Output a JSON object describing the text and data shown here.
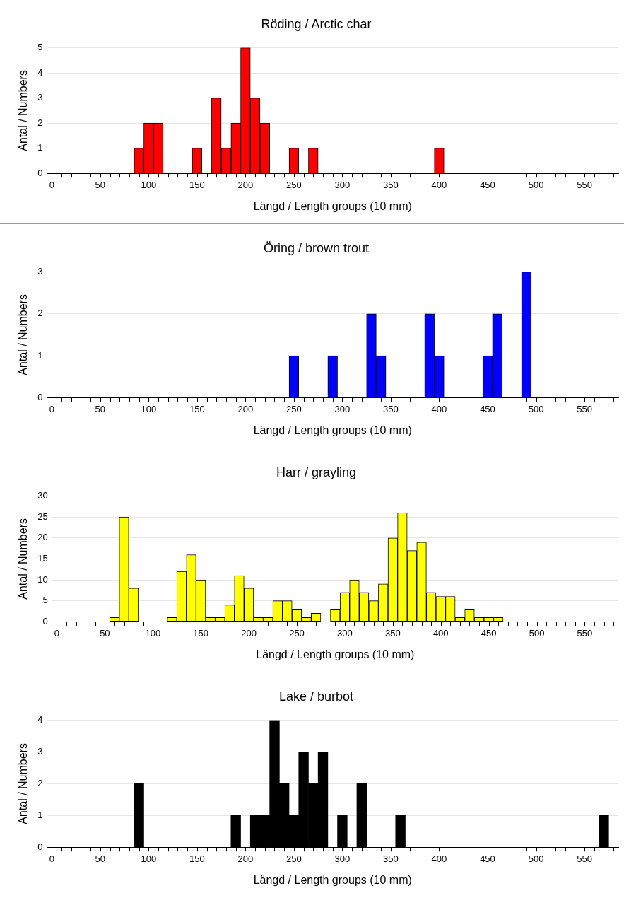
{
  "chart_data": [
    {
      "type": "histogram",
      "title": "Röding / Arctic char",
      "xlabel": "Längd / Length groups (10 mm)",
      "ylabel": "Antal / Numbers",
      "color": "#ff0000",
      "grid": "y",
      "bins": [
        -5,
        5,
        15,
        25,
        35,
        45,
        55,
        65,
        75,
        85,
        95,
        105,
        115,
        125,
        135,
        145,
        155,
        165,
        175,
        185,
        195,
        205,
        215,
        225,
        235,
        245,
        255,
        265,
        275,
        285,
        295,
        305,
        315,
        325,
        335,
        345,
        355,
        365,
        375,
        385,
        395,
        405,
        415,
        425,
        435,
        445,
        455,
        465,
        475,
        485,
        495,
        505,
        515,
        525,
        535,
        545,
        555,
        565,
        575,
        585
      ],
      "values": [
        0,
        0,
        0,
        0,
        0,
        0,
        0,
        0,
        0,
        1,
        2,
        2,
        0,
        0,
        0,
        1,
        0,
        3,
        1,
        2,
        5,
        3,
        2,
        0,
        0,
        1,
        0,
        1,
        0,
        0,
        0,
        0,
        0,
        0,
        0,
        0,
        0,
        0,
        0,
        0,
        1,
        0,
        0,
        0,
        0,
        0,
        0,
        0,
        0,
        0,
        0,
        0,
        0,
        0,
        0,
        0,
        0,
        0,
        0
      ],
      "xlim": [
        -5,
        585
      ],
      "ylim": [
        0,
        5
      ],
      "yticks": [
        0,
        1,
        2,
        3,
        4,
        5
      ],
      "xticks": [
        0,
        {
          "value": 10,
          "label": null
        },
        {
          "value": 20,
          "label": null
        },
        {
          "value": 30,
          "label": null
        },
        {
          "value": 40,
          "label": null
        },
        50,
        {
          "value": 60,
          "label": null
        },
        {
          "value": 70,
          "label": null
        },
        {
          "value": 80,
          "label": null
        },
        {
          "value": 90,
          "label": null
        },
        100,
        {
          "value": 110,
          "label": null
        },
        {
          "value": 120,
          "label": null
        },
        {
          "value": 130,
          "label": null
        },
        {
          "value": 140,
          "label": null
        },
        150,
        {
          "value": 160,
          "label": null
        },
        {
          "value": 170,
          "label": null
        },
        {
          "value": 180,
          "label": null
        },
        {
          "value": 190,
          "label": null
        },
        200,
        {
          "value": 210,
          "label": null
        },
        {
          "value": 220,
          "label": null
        },
        {
          "value": 230,
          "label": null
        },
        {
          "value": 240,
          "label": null
        },
        250,
        {
          "value": 260,
          "label": null
        },
        {
          "value": 270,
          "label": null
        },
        {
          "value": 280,
          "label": null
        },
        {
          "value": 290,
          "label": null
        },
        300,
        {
          "value": 310,
          "label": null
        },
        {
          "value": 320,
          "label": null
        },
        {
          "value": 330,
          "label": null
        },
        {
          "value": 340,
          "label": null
        },
        350,
        {
          "value": 360,
          "label": null
        },
        {
          "value": 370,
          "label": null
        },
        {
          "value": 380,
          "label": null
        },
        {
          "value": 390,
          "label": null
        },
        400,
        {
          "value": 410,
          "label": null
        },
        {
          "value": 420,
          "label": null
        },
        {
          "value": 430,
          "label": null
        },
        {
          "value": 440,
          "label": null
        },
        450,
        {
          "value": 460,
          "label": null
        },
        {
          "value": 470,
          "label": null
        },
        {
          "value": 480,
          "label": null
        },
        {
          "value": 490,
          "label": null
        },
        500,
        {
          "value": 510,
          "label": null
        },
        {
          "value": 520,
          "label": null
        },
        {
          "value": 530,
          "label": null
        },
        {
          "value": 540,
          "label": null
        },
        550,
        {
          "value": 560,
          "label": null
        },
        {
          "value": 570,
          "label": null
        },
        {
          "value": 580,
          "label": null
        }
      ]
    },
    {
      "type": "histogram",
      "title": "Öring / brown trout",
      "xlabel": "Längd / Length groups (10 mm)",
      "ylabel": "Antal / Numbers",
      "color": "#0000ff",
      "grid": "y",
      "bins": [
        -5,
        5,
        15,
        25,
        35,
        45,
        55,
        65,
        75,
        85,
        95,
        105,
        115,
        125,
        135,
        145,
        155,
        165,
        175,
        185,
        195,
        205,
        215,
        225,
        235,
        245,
        255,
        265,
        275,
        285,
        295,
        305,
        315,
        325,
        335,
        345,
        355,
        365,
        375,
        385,
        395,
        405,
        415,
        425,
        435,
        445,
        455,
        465,
        475,
        485,
        495,
        505,
        515,
        525,
        535,
        545,
        555,
        565,
        575,
        585
      ],
      "values": [
        0,
        0,
        0,
        0,
        0,
        0,
        0,
        0,
        0,
        0,
        0,
        0,
        0,
        0,
        0,
        0,
        0,
        0,
        0,
        0,
        0,
        0,
        0,
        0,
        0,
        1,
        0,
        0,
        0,
        1,
        0,
        0,
        0,
        2,
        1,
        0,
        0,
        0,
        0,
        2,
        1,
        0,
        0,
        0,
        0,
        1,
        2,
        0,
        0,
        3,
        0,
        0,
        0,
        0,
        0,
        0,
        0,
        0,
        0
      ],
      "xlim": [
        -5,
        585
      ],
      "ylim": [
        0,
        3
      ],
      "yticks": [
        0,
        1,
        2,
        3
      ],
      "xticks": [
        0,
        {
          "value": 10,
          "label": null
        },
        {
          "value": 20,
          "label": null
        },
        {
          "value": 30,
          "label": null
        },
        {
          "value": 40,
          "label": null
        },
        50,
        {
          "value": 60,
          "label": null
        },
        {
          "value": 70,
          "label": null
        },
        {
          "value": 80,
          "label": null
        },
        {
          "value": 90,
          "label": null
        },
        100,
        {
          "value": 110,
          "label": null
        },
        {
          "value": 120,
          "label": null
        },
        {
          "value": 130,
          "label": null
        },
        {
          "value": 140,
          "label": null
        },
        150,
        {
          "value": 160,
          "label": null
        },
        {
          "value": 170,
          "label": null
        },
        {
          "value": 180,
          "label": null
        },
        {
          "value": 190,
          "label": null
        },
        200,
        {
          "value": 210,
          "label": null
        },
        {
          "value": 220,
          "label": null
        },
        {
          "value": 230,
          "label": null
        },
        {
          "value": 240,
          "label": null
        },
        250,
        {
          "value": 260,
          "label": null
        },
        {
          "value": 270,
          "label": null
        },
        {
          "value": 280,
          "label": null
        },
        {
          "value": 290,
          "label": null
        },
        300,
        {
          "value": 310,
          "label": null
        },
        {
          "value": 320,
          "label": null
        },
        {
          "value": 330,
          "label": null
        },
        {
          "value": 340,
          "label": null
        },
        350,
        {
          "value": 360,
          "label": null
        },
        {
          "value": 370,
          "label": null
        },
        {
          "value": 380,
          "label": null
        },
        {
          "value": 390,
          "label": null
        },
        400,
        {
          "value": 410,
          "label": null
        },
        {
          "value": 420,
          "label": null
        },
        {
          "value": 430,
          "label": null
        },
        {
          "value": 440,
          "label": null
        },
        450,
        {
          "value": 460,
          "label": null
        },
        {
          "value": 470,
          "label": null
        },
        {
          "value": 480,
          "label": null
        },
        {
          "value": 490,
          "label": null
        },
        500,
        {
          "value": 510,
          "label": null
        },
        {
          "value": 520,
          "label": null
        },
        {
          "value": 530,
          "label": null
        },
        {
          "value": 540,
          "label": null
        },
        550,
        {
          "value": 560,
          "label": null
        },
        {
          "value": 570,
          "label": null
        },
        {
          "value": 580,
          "label": null
        }
      ]
    },
    {
      "type": "histogram",
      "title": "Harr / grayling",
      "xlabel": "Längd / Length groups (10 mm)",
      "ylabel": "Antal / Numbers",
      "color": "#ffff00",
      "grid": "y",
      "bins": [
        -5,
        5,
        15,
        25,
        35,
        45,
        55,
        65,
        75,
        85,
        95,
        105,
        115,
        125,
        135,
        145,
        155,
        165,
        175,
        185,
        195,
        205,
        215,
        225,
        235,
        245,
        255,
        265,
        275,
        285,
        295,
        305,
        315,
        325,
        335,
        345,
        355,
        365,
        375,
        385,
        395,
        405,
        415,
        425,
        435,
        445,
        455,
        465,
        475,
        485,
        495,
        505,
        515,
        525,
        535,
        545,
        555,
        565,
        575,
        585
      ],
      "values": [
        0,
        0,
        0,
        0,
        0,
        0,
        1,
        25,
        8,
        0,
        0,
        0,
        1,
        12,
        16,
        10,
        1,
        1,
        4,
        11,
        8,
        1,
        1,
        5,
        5,
        3,
        1,
        2,
        0,
        3,
        7,
        10,
        7,
        5,
        9,
        20,
        26,
        17,
        19,
        7,
        6,
        6,
        1,
        3,
        1,
        1,
        1,
        0,
        0,
        0,
        0,
        0,
        0,
        0,
        0,
        0,
        0,
        0,
        0
      ],
      "xlim": [
        -5,
        585
      ],
      "ylim": [
        0,
        30
      ],
      "yticks": [
        0,
        5,
        10,
        15,
        20,
        25,
        30
      ],
      "xticks": [
        0,
        {
          "value": 10,
          "label": null
        },
        {
          "value": 20,
          "label": null
        },
        {
          "value": 30,
          "label": null
        },
        {
          "value": 40,
          "label": null
        },
        50,
        {
          "value": 60,
          "label": null
        },
        {
          "value": 70,
          "label": null
        },
        {
          "value": 80,
          "label": null
        },
        {
          "value": 90,
          "label": null
        },
        100,
        {
          "value": 110,
          "label": null
        },
        {
          "value": 120,
          "label": null
        },
        {
          "value": 130,
          "label": null
        },
        {
          "value": 140,
          "label": null
        },
        150,
        {
          "value": 160,
          "label": null
        },
        {
          "value": 170,
          "label": null
        },
        {
          "value": 180,
          "label": null
        },
        {
          "value": 190,
          "label": null
        },
        200,
        {
          "value": 210,
          "label": null
        },
        {
          "value": 220,
          "label": null
        },
        {
          "value": 230,
          "label": null
        },
        {
          "value": 240,
          "label": null
        },
        250,
        {
          "value": 260,
          "label": null
        },
        {
          "value": 270,
          "label": null
        },
        {
          "value": 280,
          "label": null
        },
        {
          "value": 290,
          "label": null
        },
        300,
        {
          "value": 310,
          "label": null
        },
        {
          "value": 320,
          "label": null
        },
        {
          "value": 330,
          "label": null
        },
        {
          "value": 340,
          "label": null
        },
        350,
        {
          "value": 360,
          "label": null
        },
        {
          "value": 370,
          "label": null
        },
        {
          "value": 380,
          "label": null
        },
        {
          "value": 390,
          "label": null
        },
        400,
        {
          "value": 410,
          "label": null
        },
        {
          "value": 420,
          "label": null
        },
        {
          "value": 430,
          "label": null
        },
        {
          "value": 440,
          "label": null
        },
        450,
        {
          "value": 460,
          "label": null
        },
        {
          "value": 470,
          "label": null
        },
        {
          "value": 480,
          "label": null
        },
        {
          "value": 490,
          "label": null
        },
        500,
        {
          "value": 510,
          "label": null
        },
        {
          "value": 520,
          "label": null
        },
        {
          "value": 530,
          "label": null
        },
        {
          "value": 540,
          "label": null
        },
        550,
        {
          "value": 560,
          "label": null
        },
        {
          "value": 570,
          "label": null
        },
        {
          "value": 580,
          "label": null
        }
      ]
    },
    {
      "type": "histogram",
      "title": "Lake / burbot",
      "xlabel": "Längd / Length groups (10 mm)",
      "ylabel": "Antal / Numbers",
      "color": "#000000",
      "grid": "y",
      "bins": [
        -5,
        5,
        15,
        25,
        35,
        45,
        55,
        65,
        75,
        85,
        95,
        105,
        115,
        125,
        135,
        145,
        155,
        165,
        175,
        185,
        195,
        205,
        215,
        225,
        235,
        245,
        255,
        265,
        275,
        285,
        295,
        305,
        315,
        325,
        335,
        345,
        355,
        365,
        375,
        385,
        395,
        405,
        415,
        425,
        435,
        445,
        455,
        465,
        475,
        485,
        495,
        505,
        515,
        525,
        535,
        545,
        555,
        565,
        575,
        585
      ],
      "values": [
        0,
        0,
        0,
        0,
        0,
        0,
        0,
        0,
        0,
        2,
        0,
        0,
        0,
        0,
        0,
        0,
        0,
        0,
        0,
        1,
        0,
        1,
        1,
        4,
        2,
        1,
        3,
        2,
        3,
        0,
        1,
        0,
        2,
        0,
        0,
        0,
        1,
        0,
        0,
        0,
        0,
        0,
        0,
        0,
        0,
        0,
        0,
        0,
        0,
        0,
        0,
        0,
        0,
        0,
        0,
        0,
        0,
        1,
        0
      ],
      "xlim": [
        -5,
        585
      ],
      "ylim": [
        0,
        4
      ],
      "yticks": [
        0,
        1,
        2,
        3,
        4
      ],
      "xticks": [
        0,
        {
          "value": 10,
          "label": null
        },
        {
          "value": 20,
          "label": null
        },
        {
          "value": 30,
          "label": null
        },
        {
          "value": 40,
          "label": null
        },
        50,
        {
          "value": 60,
          "label": null
        },
        {
          "value": 70,
          "label": null
        },
        {
          "value": 80,
          "label": null
        },
        {
          "value": 90,
          "label": null
        },
        100,
        {
          "value": 110,
          "label": null
        },
        {
          "value": 120,
          "label": null
        },
        {
          "value": 130,
          "label": null
        },
        {
          "value": 140,
          "label": null
        },
        150,
        {
          "value": 160,
          "label": null
        },
        {
          "value": 170,
          "label": null
        },
        {
          "value": 180,
          "label": null
        },
        {
          "value": 190,
          "label": null
        },
        200,
        {
          "value": 210,
          "label": null
        },
        {
          "value": 220,
          "label": null
        },
        {
          "value": 230,
          "label": null
        },
        {
          "value": 240,
          "label": null
        },
        250,
        {
          "value": 260,
          "label": null
        },
        {
          "value": 270,
          "label": null
        },
        {
          "value": 280,
          "label": null
        },
        {
          "value": 290,
          "label": null
        },
        300,
        {
          "value": 310,
          "label": null
        },
        {
          "value": 320,
          "label": null
        },
        {
          "value": 330,
          "label": null
        },
        {
          "value": 340,
          "label": null
        },
        350,
        {
          "value": 360,
          "label": null
        },
        {
          "value": 370,
          "label": null
        },
        {
          "value": 380,
          "label": null
        },
        {
          "value": 390,
          "label": null
        },
        400,
        {
          "value": 410,
          "label": null
        },
        {
          "value": 420,
          "label": null
        },
        {
          "value": 430,
          "label": null
        },
        {
          "value": 440,
          "label": null
        },
        450,
        {
          "value": 460,
          "label": null
        },
        {
          "value": 470,
          "label": null
        },
        {
          "value": 480,
          "label": null
        },
        {
          "value": 490,
          "label": null
        },
        500,
        {
          "value": 510,
          "label": null
        },
        {
          "value": 520,
          "label": null
        },
        {
          "value": 530,
          "label": null
        },
        {
          "value": 540,
          "label": null
        },
        550,
        {
          "value": 560,
          "label": null
        },
        {
          "value": 570,
          "label": null
        },
        {
          "value": 580,
          "label": null
        }
      ]
    }
  ]
}
